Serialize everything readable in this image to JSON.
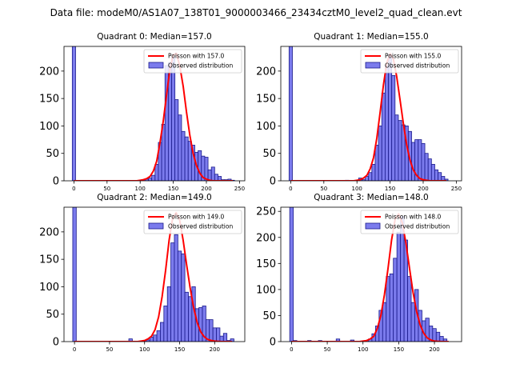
{
  "figure_title": "Data file: modeM0/AS1A07_138T01_9000003466_23434cztM0_level2_quad_clean.evt",
  "colors": {
    "bar_fill": "#7b7bed",
    "bar_edge": "#1a1a8c",
    "poisson_line": "#ff0000"
  },
  "chart_data": [
    {
      "type": "bar",
      "title": "Quadrant 0: Median=157.0",
      "xlim": [
        -15,
        258
      ],
      "ylim": [
        0,
        245
      ],
      "xticks": [
        0,
        50,
        100,
        150,
        200,
        250
      ],
      "yticks": [
        0,
        50,
        100,
        150,
        200
      ],
      "bin_width": 5,
      "series": [
        {
          "name": "Observed distribution",
          "x": [
            0,
            105,
            110,
            115,
            120,
            125,
            130,
            135,
            140,
            145,
            150,
            155,
            160,
            165,
            170,
            175,
            180,
            185,
            190,
            195,
            200,
            205,
            210,
            215,
            220,
            225,
            230,
            235,
            240
          ],
          "values": [
            245,
            2,
            3,
            5,
            10,
            30,
            70,
            103,
            210,
            215,
            225,
            148,
            120,
            90,
            80,
            72,
            65,
            52,
            55,
            45,
            43,
            20,
            25,
            12,
            8,
            2,
            2,
            3,
            1
          ]
        },
        {
          "name": "Poisson with 157.0",
          "x": [
            0,
            95,
            100,
            105,
            110,
            115,
            120,
            125,
            130,
            135,
            140,
            145,
            150,
            155,
            160,
            165,
            170,
            175,
            180,
            185,
            190,
            195,
            200,
            205,
            210,
            215,
            220,
            225,
            230,
            240
          ],
          "values": [
            0,
            0,
            1,
            2,
            4,
            8,
            18,
            36,
            70,
            110,
            158,
            204,
            230,
            232,
            208,
            172,
            125,
            83,
            50,
            28,
            14,
            6,
            3,
            1,
            0,
            0,
            0,
            0,
            0,
            0
          ]
        }
      ]
    },
    {
      "type": "bar",
      "title": "Quadrant 1: Median=155.0",
      "xlim": [
        -15,
        258
      ],
      "ylim": [
        0,
        245
      ],
      "xticks": [
        0,
        50,
        100,
        150,
        200,
        250
      ],
      "yticks": [
        0,
        50,
        100,
        150,
        200
      ],
      "bin_width": 5,
      "series": [
        {
          "name": "Observed distribution",
          "x": [
            0,
            85,
            105,
            110,
            115,
            120,
            125,
            130,
            135,
            140,
            145,
            150,
            155,
            160,
            165,
            170,
            175,
            180,
            185,
            190,
            195,
            200,
            205,
            210,
            215,
            220,
            225,
            230,
            235
          ],
          "values": [
            245,
            1,
            5,
            2,
            8,
            15,
            30,
            65,
            100,
            160,
            210,
            230,
            192,
            120,
            110,
            102,
            100,
            90,
            70,
            75,
            75,
            68,
            50,
            40,
            30,
            20,
            15,
            8,
            3
          ]
        },
        {
          "name": "Poisson with 155.0",
          "x": [
            0,
            95,
            100,
            105,
            110,
            115,
            120,
            125,
            130,
            135,
            140,
            145,
            150,
            155,
            160,
            165,
            170,
            175,
            180,
            185,
            190,
            195,
            200,
            205,
            210,
            215,
            220,
            225,
            230,
            235
          ],
          "values": [
            0,
            0,
            1,
            2,
            5,
            10,
            22,
            42,
            78,
            125,
            175,
            215,
            232,
            222,
            190,
            148,
            105,
            66,
            38,
            20,
            10,
            4,
            2,
            1,
            0,
            0,
            0,
            0,
            0,
            0
          ]
        }
      ]
    },
    {
      "type": "bar",
      "title": "Quadrant 2: Median=149.0",
      "xlim": [
        -15,
        243
      ],
      "ylim": [
        0,
        245
      ],
      "xticks": [
        0,
        50,
        100,
        150,
        200
      ],
      "yticks": [
        0,
        50,
        100,
        150,
        200
      ],
      "bin_width": 5,
      "series": [
        {
          "name": "Observed distribution",
          "x": [
            0,
            80,
            100,
            105,
            110,
            115,
            120,
            125,
            130,
            135,
            140,
            145,
            150,
            155,
            160,
            165,
            170,
            175,
            180,
            185,
            190,
            195,
            200,
            205,
            210,
            215,
            220,
            225
          ],
          "values": [
            245,
            5,
            2,
            3,
            8,
            12,
            20,
            35,
            65,
            100,
            180,
            195,
            165,
            160,
            90,
            82,
            100,
            60,
            62,
            65,
            40,
            40,
            25,
            25,
            10,
            15,
            2,
            5
          ]
        },
        {
          "name": "Poisson with 149.0",
          "x": [
            0,
            90,
            95,
            100,
            105,
            110,
            115,
            120,
            125,
            130,
            135,
            140,
            145,
            150,
            155,
            160,
            165,
            170,
            175,
            180,
            185,
            190,
            195,
            200,
            210,
            220,
            225
          ],
          "values": [
            0,
            0,
            1,
            2,
            5,
            10,
            22,
            45,
            82,
            130,
            185,
            225,
            235,
            222,
            185,
            140,
            98,
            62,
            35,
            18,
            9,
            4,
            2,
            1,
            0,
            0,
            0
          ]
        }
      ]
    },
    {
      "type": "bar",
      "title": "Quadrant 3: Median=148.0",
      "xlim": [
        -15,
        238
      ],
      "ylim": [
        0,
        258
      ],
      "xticks": [
        0,
        50,
        100,
        150,
        200
      ],
      "yticks": [
        0,
        50,
        100,
        150,
        200,
        250
      ],
      "bin_width": 5,
      "series": [
        {
          "name": "Observed distribution",
          "x": [
            0,
            5,
            25,
            40,
            65,
            85,
            105,
            110,
            115,
            120,
            125,
            130,
            135,
            140,
            145,
            150,
            155,
            160,
            165,
            170,
            175,
            180,
            185,
            190,
            195,
            200,
            205,
            210,
            215
          ],
          "values": [
            258,
            2,
            2,
            2,
            5,
            3,
            2,
            5,
            15,
            30,
            60,
            75,
            125,
            130,
            160,
            210,
            240,
            195,
            125,
            75,
            100,
            60,
            40,
            45,
            30,
            25,
            18,
            10,
            5
          ]
        },
        {
          "name": "Poisson with 148.0",
          "x": [
            0,
            95,
            100,
            105,
            110,
            115,
            120,
            125,
            130,
            135,
            140,
            145,
            150,
            155,
            160,
            165,
            170,
            175,
            180,
            185,
            190,
            195,
            200,
            210,
            220
          ],
          "values": [
            0,
            0,
            1,
            2,
            5,
            10,
            25,
            50,
            90,
            140,
            195,
            235,
            245,
            228,
            190,
            142,
            95,
            58,
            32,
            16,
            7,
            3,
            1,
            0,
            0
          ]
        }
      ]
    }
  ]
}
